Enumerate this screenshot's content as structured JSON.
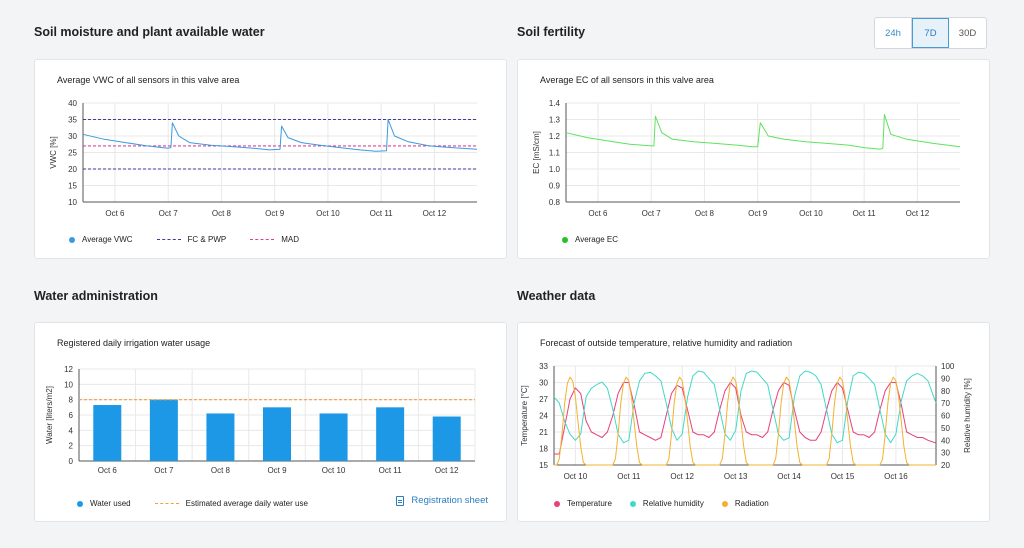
{
  "range_selector": {
    "options": [
      "24h",
      "7D",
      "30D"
    ],
    "active": "7D"
  },
  "colors": {
    "vwc": "#3a9bdc",
    "fcpwp": "#3d3d9e",
    "mad": "#e0409a",
    "ec": "#5ee35e",
    "water": "#1c98e6",
    "estimate": "#f0a040",
    "temperature": "#e8407a",
    "humidity": "#40d8c8",
    "radiation": "#f5b030"
  },
  "moisture": {
    "section_title": "Soil moisture and plant available water",
    "card_title": "Average VWC of all sensors in this valve area",
    "legend": {
      "avg": "Average VWC",
      "fc_pwp": "FC & PWP",
      "mad": "MAD"
    }
  },
  "fertility": {
    "section_title": "Soil fertility",
    "card_title": "Average EC of all sensors in this valve area",
    "legend": {
      "avg": "Average EC"
    }
  },
  "water": {
    "section_title": "Water administration",
    "card_title": "Registered daily irrigation water usage",
    "legend": {
      "used": "Water used",
      "estimate": "Estimated average daily water use"
    },
    "registration_link": "Registration sheet"
  },
  "weather": {
    "section_title": "Weather data",
    "card_title": "Forecast of outside temperature, relative humidity and radiation",
    "legend": {
      "temperature": "Temperature",
      "humidity": "Relative humidity",
      "radiation": "Radiation"
    }
  },
  "chart_data": [
    {
      "type": "line",
      "ylabel": "VWC [%]",
      "ylim": [
        10,
        40
      ],
      "yticks": [
        10,
        15,
        20,
        25,
        30,
        35,
        40
      ],
      "xlim": [
        5.4,
        12.8
      ],
      "xticks": [
        {
          "x": 6,
          "label": "Oct 6"
        },
        {
          "x": 7,
          "label": "Oct 7"
        },
        {
          "x": 8,
          "label": "Oct 8"
        },
        {
          "x": 9,
          "label": "Oct 9"
        },
        {
          "x": 10,
          "label": "Oct 10"
        },
        {
          "x": 11,
          "label": "Oct 11"
        },
        {
          "x": 12,
          "label": "Oct 12"
        }
      ],
      "grid": true,
      "series": [
        {
          "name": "Average VWC",
          "x": [
            5.4,
            5.8,
            6.2,
            6.6,
            7.0,
            7.05,
            7.08,
            7.2,
            7.4,
            7.8,
            8.2,
            8.6,
            8.9,
            9.1,
            9.13,
            9.25,
            9.5,
            9.8,
            10.2,
            10.6,
            10.9,
            11.1,
            11.13,
            11.25,
            11.5,
            11.9,
            12.3,
            12.8
          ],
          "y": [
            30.5,
            29.0,
            28.0,
            27.0,
            26.3,
            26.5,
            34.0,
            30.0,
            28.0,
            27.2,
            26.8,
            26.3,
            25.8,
            26.0,
            33.0,
            29.5,
            28.0,
            27.3,
            26.5,
            25.8,
            25.4,
            25.5,
            35.0,
            30.0,
            28.3,
            27.0,
            26.5,
            26.0
          ]
        }
      ],
      "reference_lines": [
        {
          "name": "FC & PWP",
          "values": [
            35,
            20
          ]
        },
        {
          "name": "MAD",
          "values": [
            27
          ]
        }
      ]
    },
    {
      "type": "line",
      "ylabel": "EC [mS/cm]",
      "ylim": [
        0.8,
        1.4
      ],
      "yticks": [
        0.8,
        0.9,
        1.0,
        1.1,
        1.2,
        1.3,
        1.4
      ],
      "xlim": [
        5.4,
        12.8
      ],
      "xticks": [
        {
          "x": 6,
          "label": "Oct 6"
        },
        {
          "x": 7,
          "label": "Oct 7"
        },
        {
          "x": 8,
          "label": "Oct 8"
        },
        {
          "x": 9,
          "label": "Oct 9"
        },
        {
          "x": 10,
          "label": "Oct 10"
        },
        {
          "x": 11,
          "label": "Oct 11"
        },
        {
          "x": 12,
          "label": "Oct 12"
        }
      ],
      "grid": true,
      "series": [
        {
          "name": "Average EC",
          "x": [
            5.4,
            5.8,
            6.2,
            6.6,
            7.0,
            7.05,
            7.08,
            7.2,
            7.4,
            7.8,
            8.2,
            8.6,
            8.9,
            9.0,
            9.05,
            9.2,
            9.5,
            9.9,
            10.3,
            10.7,
            11.0,
            11.3,
            11.35,
            11.38,
            11.5,
            11.8,
            12.3,
            12.8
          ],
          "y": [
            1.22,
            1.19,
            1.17,
            1.15,
            1.14,
            1.14,
            1.32,
            1.22,
            1.18,
            1.165,
            1.155,
            1.145,
            1.135,
            1.135,
            1.28,
            1.2,
            1.18,
            1.165,
            1.155,
            1.145,
            1.13,
            1.12,
            1.125,
            1.33,
            1.21,
            1.18,
            1.155,
            1.135
          ]
        }
      ]
    },
    {
      "type": "bar",
      "ylabel": "Water [liters/m2]",
      "ylim": [
        0,
        12
      ],
      "yticks": [
        0,
        2,
        4,
        6,
        8,
        10,
        12
      ],
      "categories": [
        "Oct 6",
        "Oct 7",
        "Oct 8",
        "Oct 9",
        "Oct 10",
        "Oct 11",
        "Oct 12"
      ],
      "grid": true,
      "series": [
        {
          "name": "Water used",
          "values": [
            7.3,
            8.0,
            6.2,
            7.0,
            6.2,
            7.0,
            5.8
          ]
        }
      ],
      "reference_lines": [
        {
          "name": "Estimated average daily water use",
          "values": [
            8
          ]
        }
      ]
    },
    {
      "type": "line",
      "ylabel": "Temperature [°C]",
      "ylabel_right": "Relative humidity [%]",
      "ylim": [
        15,
        33
      ],
      "yticks": [
        15,
        18,
        21,
        24,
        27,
        30,
        33
      ],
      "ylim_right": [
        20,
        100
      ],
      "yticks_right": [
        20,
        30,
        40,
        50,
        60,
        70,
        80,
        90,
        100
      ],
      "xlim": [
        9.6,
        16.75
      ],
      "xticks": [
        {
          "x": 10,
          "label": "Oct 10"
        },
        {
          "x": 11,
          "label": "Oct 11"
        },
        {
          "x": 12,
          "label": "Oct 12"
        },
        {
          "x": 13,
          "label": "Oct 13"
        },
        {
          "x": 14,
          "label": "Oct 14"
        },
        {
          "x": 15,
          "label": "Oct 15"
        },
        {
          "x": 16,
          "label": "Oct 16"
        }
      ],
      "grid": true,
      "series": [
        {
          "name": "Temperature",
          "axis": "left",
          "x": [
            9.6,
            9.7,
            9.8,
            9.9,
            10.0,
            10.1,
            10.2,
            10.3,
            10.4,
            10.5,
            10.6,
            10.7,
            10.8,
            10.9,
            11.0,
            11.1,
            11.2,
            11.3,
            11.4,
            11.5,
            11.6,
            11.7,
            11.8,
            11.9,
            12.0,
            12.1,
            12.2,
            12.3,
            12.4,
            12.5,
            12.6,
            12.7,
            12.8,
            12.9,
            13.0,
            13.1,
            13.2,
            13.3,
            13.4,
            13.5,
            13.6,
            13.7,
            13.8,
            13.9,
            14.0,
            14.1,
            14.2,
            14.3,
            14.4,
            14.5,
            14.6,
            14.7,
            14.8,
            14.9,
            15.0,
            15.1,
            15.2,
            15.3,
            15.4,
            15.5,
            15.6,
            15.7,
            15.8,
            15.9,
            16.0,
            16.1,
            16.2,
            16.3,
            16.4,
            16.5,
            16.6,
            16.75
          ],
          "y": [
            17,
            17,
            22,
            27,
            29,
            28,
            23,
            21,
            20.5,
            20,
            21,
            24,
            28,
            30,
            30,
            26,
            21,
            20.5,
            20,
            19.5,
            20,
            24,
            28,
            29.5,
            29,
            25,
            21,
            20.5,
            20.5,
            20,
            21,
            25,
            28.5,
            30,
            29,
            24,
            21,
            20.5,
            20.5,
            20,
            21,
            25,
            28.5,
            30,
            29.5,
            25,
            21,
            20,
            19.5,
            19.5,
            21,
            25,
            28.5,
            30,
            29,
            25,
            21,
            20.5,
            20.5,
            20,
            21,
            25,
            28.5,
            30,
            30,
            26,
            21,
            20.5,
            20,
            20,
            19.5,
            19
          ]
        },
        {
          "name": "Relative humidity",
          "axis": "right",
          "x": [
            9.6,
            9.7,
            9.8,
            9.9,
            10.0,
            10.1,
            10.2,
            10.3,
            10.4,
            10.5,
            10.6,
            10.7,
            10.8,
            10.9,
            11.0,
            11.1,
            11.2,
            11.3,
            11.4,
            11.5,
            11.6,
            11.7,
            11.8,
            11.9,
            12.0,
            12.1,
            12.2,
            12.3,
            12.4,
            12.5,
            12.6,
            12.7,
            12.8,
            12.9,
            13.0,
            13.1,
            13.2,
            13.3,
            13.4,
            13.5,
            13.6,
            13.7,
            13.8,
            13.9,
            14.0,
            14.1,
            14.2,
            14.3,
            14.4,
            14.5,
            14.6,
            14.7,
            14.8,
            14.9,
            15.0,
            15.1,
            15.2,
            15.3,
            15.4,
            15.5,
            15.6,
            15.7,
            15.8,
            15.9,
            16.0,
            16.1,
            16.2,
            16.3,
            16.4,
            16.5,
            16.6,
            16.75
          ],
          "y": [
            75,
            70,
            55,
            45,
            40,
            45,
            75,
            82,
            85,
            87,
            82,
            65,
            45,
            38,
            40,
            70,
            88,
            94,
            95,
            92,
            88,
            70,
            50,
            40,
            45,
            75,
            92,
            96,
            95,
            90,
            85,
            65,
            45,
            40,
            48,
            80,
            94,
            96,
            95,
            90,
            85,
            65,
            45,
            40,
            42,
            75,
            92,
            96,
            95,
            92,
            85,
            65,
            45,
            38,
            40,
            72,
            92,
            95,
            94,
            90,
            85,
            65,
            45,
            38,
            45,
            72,
            88,
            92,
            94,
            92,
            88,
            70
          ]
        },
        {
          "name": "Radiation",
          "axis": "right",
          "x": [
            9.6,
            9.65,
            9.7,
            9.75,
            9.8,
            9.85,
            9.9,
            9.95,
            10.0,
            10.05,
            10.1,
            10.15,
            10.2,
            10.25,
            10.3,
            10.7,
            10.75,
            10.8,
            10.85,
            10.9,
            10.95,
            11.0,
            11.05,
            11.1,
            11.15,
            11.2,
            11.25,
            11.3,
            11.7,
            11.75,
            11.8,
            11.85,
            11.9,
            11.95,
            12.0,
            12.05,
            12.1,
            12.15,
            12.2,
            12.25,
            12.3,
            12.7,
            12.75,
            12.8,
            12.85,
            12.9,
            12.95,
            13.0,
            13.05,
            13.1,
            13.15,
            13.2,
            13.25,
            13.3,
            13.7,
            13.75,
            13.8,
            13.85,
            13.9,
            13.95,
            14.0,
            14.05,
            14.1,
            14.15,
            14.2,
            14.25,
            14.3,
            14.7,
            14.75,
            14.8,
            14.85,
            14.9,
            14.95,
            15.0,
            15.05,
            15.1,
            15.15,
            15.2,
            15.25,
            15.3,
            15.7,
            15.75,
            15.8,
            15.85,
            15.9,
            15.95,
            16.0,
            16.05,
            16.1,
            16.15,
            16.2,
            16.25,
            16.3,
            16.75
          ],
          "y": [
            20,
            20,
            25,
            45,
            70,
            86,
            91,
            88,
            75,
            55,
            35,
            22,
            20,
            20,
            20,
            20,
            25,
            45,
            70,
            86,
            91,
            88,
            75,
            55,
            35,
            22,
            20,
            20,
            20,
            25,
            45,
            70,
            86,
            91,
            88,
            75,
            55,
            35,
            22,
            20,
            20,
            20,
            25,
            45,
            70,
            86,
            91,
            88,
            75,
            55,
            35,
            22,
            20,
            20,
            20,
            25,
            45,
            70,
            86,
            91,
            88,
            75,
            55,
            35,
            22,
            20,
            20,
            20,
            25,
            45,
            70,
            86,
            91,
            88,
            75,
            55,
            35,
            22,
            20,
            20,
            20,
            25,
            45,
            70,
            86,
            91,
            88,
            75,
            55,
            35,
            22,
            20,
            20,
            20
          ]
        }
      ]
    }
  ]
}
